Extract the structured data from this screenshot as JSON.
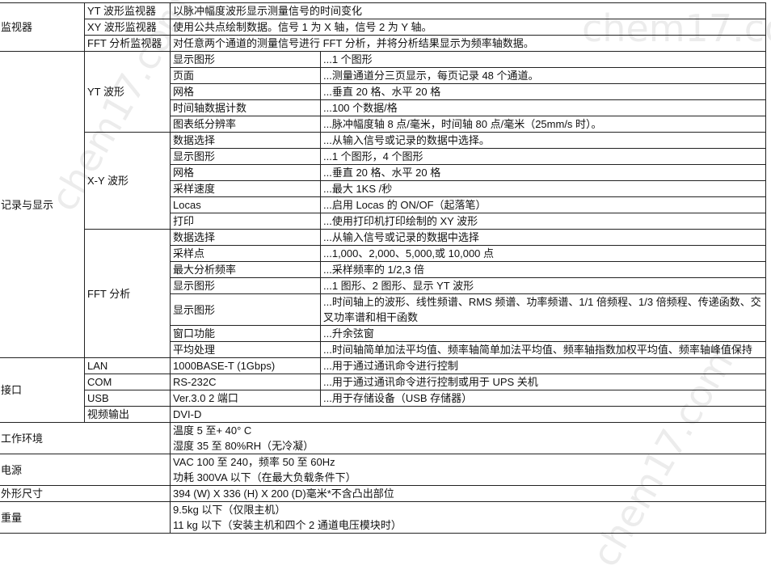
{
  "monitor": {
    "label": "监视器",
    "rows": [
      {
        "name": "YT 波形监视器",
        "desc": "以脉冲幅度波形显示测量信号的时间变化"
      },
      {
        "name": "XY 波形监视器",
        "desc": "使用公共点绘制数据。信号 1 为 X 轴，信号 2 为 Y 轴。"
      },
      {
        "name": "FFT 分析监视器",
        "desc": "对任意两个通道的测量信号进行 FFT 分析，并将分析结果显示为频率轴数据。"
      }
    ]
  },
  "record": {
    "label": "记录与显示",
    "groups": [
      {
        "name": "YT 波形",
        "rows": [
          {
            "item": "显示图形",
            "value": "...1 个图形"
          },
          {
            "item": "页面",
            "value": "...测量通道分三页显示，每页记录 48 个通道。"
          },
          {
            "item": "网格",
            "value": "...垂直 20 格、水平 20 格"
          },
          {
            "item": "时间轴数据计数",
            "value": "...100 个数据/格"
          },
          {
            "item": "图表纸分辨率",
            "value": "...脉冲幅度轴 8 点/毫米，时间轴 80 点/毫米（25mm/s 时）。"
          }
        ]
      },
      {
        "name": "X-Y 波形",
        "rows": [
          {
            "item": "数据选择",
            "value": "...从输入信号或记录的数据中选择。"
          },
          {
            "item": "显示图形",
            "value": "...1 个图形，4 个图形"
          },
          {
            "item": "网格",
            "value": "...垂直 20 格、水平 20 格"
          },
          {
            "item": "采样速度",
            "value": "...最大 1KS /秒"
          },
          {
            "item": "Locas",
            "value": "...启用 Locas 的 ON/OF（起落笔）"
          },
          {
            "item": "打印",
            "value": "...使用打印机打印绘制的 XY 波形"
          }
        ]
      },
      {
        "name": "FFT 分析",
        "rows": [
          {
            "item": "数据选择",
            "value": "...从输入信号或记录的数据中选择"
          },
          {
            "item": "采样点",
            "value": "...1,000、2,000、5,000,或 10,000 点"
          },
          {
            "item": "最大分析频率",
            "value": "...采样频率的 1/2,3 倍"
          },
          {
            "item": "显示图形",
            "value": "...1 图形、2 图形、显示 YT 波形"
          },
          {
            "item": "显示图形",
            "value": "...时间轴上的波形、线性频谱、RMS 频谱、功率频谱、1/1 倍频程、1/3 倍频程、传递函数、交叉功率谱和相干函数"
          },
          {
            "item": "窗口功能",
            "value": "...升余弦窗"
          },
          {
            "item": "平均处理",
            "value": "...时间轴简单加法平均值、频率轴简单加法平均值、频率轴指数加权平均值、频率轴峰值保持"
          }
        ]
      }
    ]
  },
  "interface": {
    "label": "接口",
    "rows": [
      {
        "name": "LAN",
        "spec": "1000BASE-T (1Gbps)",
        "desc": "...用于通过通讯命令进行控制"
      },
      {
        "name": "COM",
        "spec": "RS-232C",
        "desc": "...用于通过通讯命令进行控制或用于 UPS 关机"
      },
      {
        "name": "USB",
        "spec": "Ver.3.0 2 端口",
        "desc": "...用于存储设备（USB 存储器）"
      },
      {
        "name": "视频输出",
        "spec": "DVI-D"
      }
    ]
  },
  "others": [
    {
      "label": "工作环境",
      "lines": [
        "温度 5 至+ 40° C",
        "湿度 35 至 80%RH（无冷凝）"
      ]
    },
    {
      "label": "电源",
      "lines": [
        "VAC 100 至 240，频率 50 至 60Hz",
        "功耗 300VA 以下（在最大负载条件下）"
      ]
    },
    {
      "label": "外形尺寸",
      "lines": [
        "394 (W) X 336 (H) X 200 (D)毫米*不含凸出部位"
      ]
    },
    {
      "label": "重量",
      "lines": [
        "9.5kg 以下（仅限主机）",
        "11 kg 以下（安装主机和四个 2 通道电压模块时）"
      ]
    }
  ],
  "watermark": "chem17.com"
}
